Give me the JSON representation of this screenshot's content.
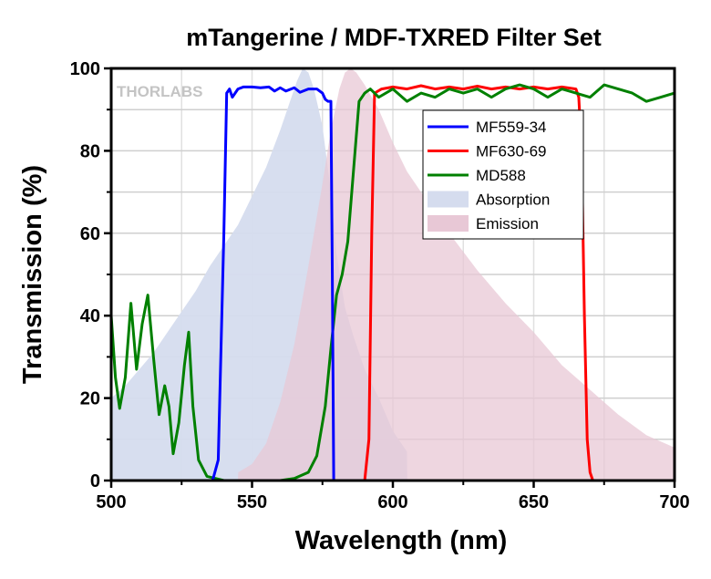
{
  "chart_data": {
    "type": "line",
    "title": "mTangerine / MDF-TXRED Filter Set",
    "xlabel": "Wavelength (nm)",
    "ylabel": "Transmission (%)",
    "xlim": [
      500,
      700
    ],
    "ylim": [
      0,
      100
    ],
    "xticks": [
      500,
      550,
      600,
      650,
      700
    ],
    "yticks": [
      0,
      20,
      40,
      60,
      80,
      100
    ],
    "grid": true,
    "watermark": "THORLABS",
    "legend_position": "top-right",
    "series": [
      {
        "name": "MF559-34",
        "type": "line",
        "color": "#0000ff",
        "x": [
          500,
          536,
          538,
          540,
          541,
          542,
          543,
          545,
          547,
          550,
          553,
          556,
          558,
          560,
          562,
          565,
          567,
          570,
          573,
          575,
          576,
          577,
          578,
          578.5,
          579,
          600,
          700
        ],
        "y": [
          0,
          0,
          5,
          60,
          94,
          95,
          93,
          95,
          95.5,
          95.5,
          95.3,
          95.5,
          94.5,
          95.3,
          94.5,
          95.3,
          94.2,
          95,
          95,
          94,
          92.5,
          92,
          92,
          50,
          0,
          0,
          0
        ]
      },
      {
        "name": "MF630-69",
        "type": "line",
        "color": "#ff0000",
        "x": [
          500,
          590,
          591.5,
          592.5,
          593.5,
          596,
          600,
          605,
          610,
          615,
          620,
          625,
          630,
          635,
          640,
          645,
          650,
          655,
          660,
          665,
          666,
          667,
          668,
          669,
          670,
          671,
          700
        ],
        "y": [
          0,
          0,
          10,
          60,
          94,
          95,
          95.5,
          95,
          95.8,
          95,
          95.5,
          95,
          95.7,
          95,
          95.5,
          95,
          95.5,
          95,
          95.5,
          95,
          93,
          80,
          40,
          10,
          2,
          0,
          0
        ]
      },
      {
        "name": "MD588",
        "type": "line",
        "color": "#008000",
        "x": [
          500,
          501.5,
          503,
          505,
          507,
          509,
          511,
          513,
          515,
          517,
          519,
          520.5,
          522,
          524,
          526,
          527.5,
          529,
          531,
          534,
          540,
          550,
          560,
          565,
          570,
          573,
          576,
          578,
          580,
          582,
          584,
          586,
          588,
          590,
          592,
          595,
          600,
          605,
          610,
          615,
          620,
          625,
          630,
          635,
          640,
          645,
          650,
          655,
          660,
          665,
          670,
          675,
          680,
          685,
          690,
          695,
          700
        ],
        "y": [
          40,
          25,
          17.5,
          25,
          43,
          27,
          38,
          45,
          30,
          16,
          23,
          18,
          6.5,
          14,
          28,
          36,
          18,
          5,
          1,
          0,
          0,
          0,
          0.5,
          2,
          6,
          18,
          32,
          45,
          50,
          58,
          75,
          92,
          94,
          95,
          93,
          95,
          92,
          94,
          93,
          95,
          94,
          95,
          93,
          95,
          96,
          95,
          93,
          95,
          94,
          93,
          96,
          95,
          94,
          92,
          93,
          94
        ]
      },
      {
        "name": "Absorption",
        "type": "area",
        "color": "#d5dcee",
        "x": [
          500,
          505,
          510,
          515,
          520,
          525,
          530,
          535,
          540,
          545,
          550,
          555,
          560,
          563,
          566,
          568,
          570,
          572,
          575,
          578,
          580,
          583,
          586,
          590,
          595,
          600,
          605,
          605.1
        ],
        "y": [
          20,
          23,
          27,
          31,
          36,
          41,
          46,
          52,
          57,
          62,
          69,
          76,
          85,
          91,
          97,
          100,
          99,
          95,
          86,
          70,
          55,
          42,
          35,
          27,
          20,
          12,
          7,
          0
        ]
      },
      {
        "name": "Emission",
        "type": "area",
        "color": "#e8c8d6",
        "x": [
          545,
          545.1,
          550,
          555,
          560,
          565,
          570,
          575,
          578,
          581,
          583,
          585,
          587,
          590,
          595,
          600,
          605,
          610,
          620,
          630,
          640,
          650,
          660,
          670,
          680,
          690,
          700
        ],
        "y": [
          0,
          2,
          4,
          9,
          19,
          33,
          52,
          72,
          85,
          95,
          99,
          100,
          99,
          96,
          90,
          82,
          75,
          70,
          60,
          51,
          43,
          36,
          28,
          22,
          16,
          11,
          8
        ]
      }
    ]
  }
}
